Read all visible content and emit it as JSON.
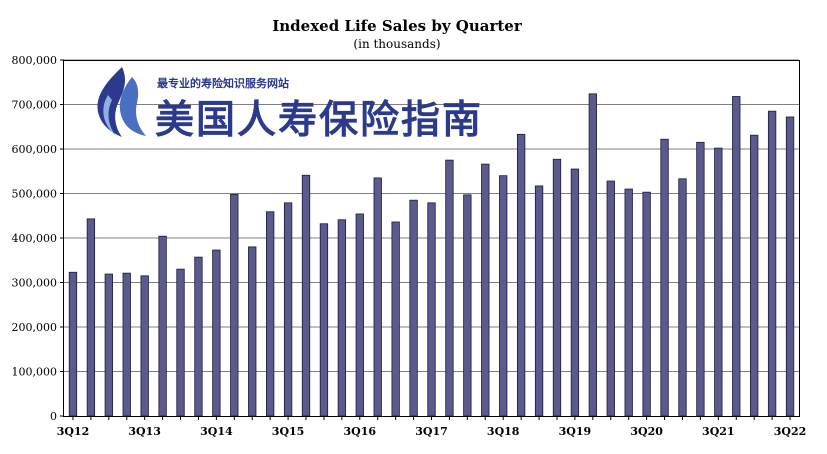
{
  "watermark": {
    "tagline": "最专业的寿险知识服务网站",
    "brand": "美国人寿保险指南"
  },
  "chart_data": {
    "type": "bar",
    "title": "Indexed Life Sales by Quarter",
    "subtitle": "(in thousands)",
    "xlabel": "",
    "ylabel": "",
    "ylim": [
      0,
      800000
    ],
    "yticks": [
      "0",
      "100,000",
      "200,000",
      "300,000",
      "400,000",
      "500,000",
      "600,000",
      "700,000",
      "800,000"
    ],
    "grid": true,
    "bar_color": "#5a5a8c",
    "categories": [
      "3Q12",
      "4Q12",
      "1Q13",
      "2Q13",
      "3Q13",
      "4Q13",
      "1Q14",
      "2Q14",
      "3Q14",
      "4Q14",
      "1Q15",
      "2Q15",
      "3Q15",
      "4Q15",
      "1Q16",
      "2Q16",
      "3Q16",
      "4Q16",
      "1Q17",
      "2Q17",
      "3Q17",
      "4Q17",
      "1Q18",
      "2Q18",
      "3Q18",
      "4Q18",
      "1Q19",
      "2Q19",
      "3Q19",
      "4Q19",
      "1Q20",
      "2Q20",
      "3Q20",
      "4Q20",
      "1Q21",
      "2Q21",
      "3Q21",
      "4Q21",
      "1Q22",
      "2Q22",
      "3Q22"
    ],
    "x_tick_labels": [
      "3Q12",
      "3Q13",
      "3Q14",
      "3Q15",
      "3Q16",
      "3Q17",
      "3Q18",
      "3Q19",
      "3Q20",
      "3Q21",
      "3Q22"
    ],
    "values": [
      323000,
      443000,
      319000,
      321000,
      315000,
      404000,
      330000,
      357000,
      373000,
      498000,
      380000,
      459000,
      479000,
      541000,
      432000,
      441000,
      454000,
      535000,
      436000,
      485000,
      479000,
      575000,
      497000,
      566000,
      540000,
      633000,
      517000,
      577000,
      555000,
      724000,
      528000,
      510000,
      503000,
      622000,
      533000,
      615000,
      602000,
      718000,
      631000,
      685000,
      672000
    ]
  }
}
